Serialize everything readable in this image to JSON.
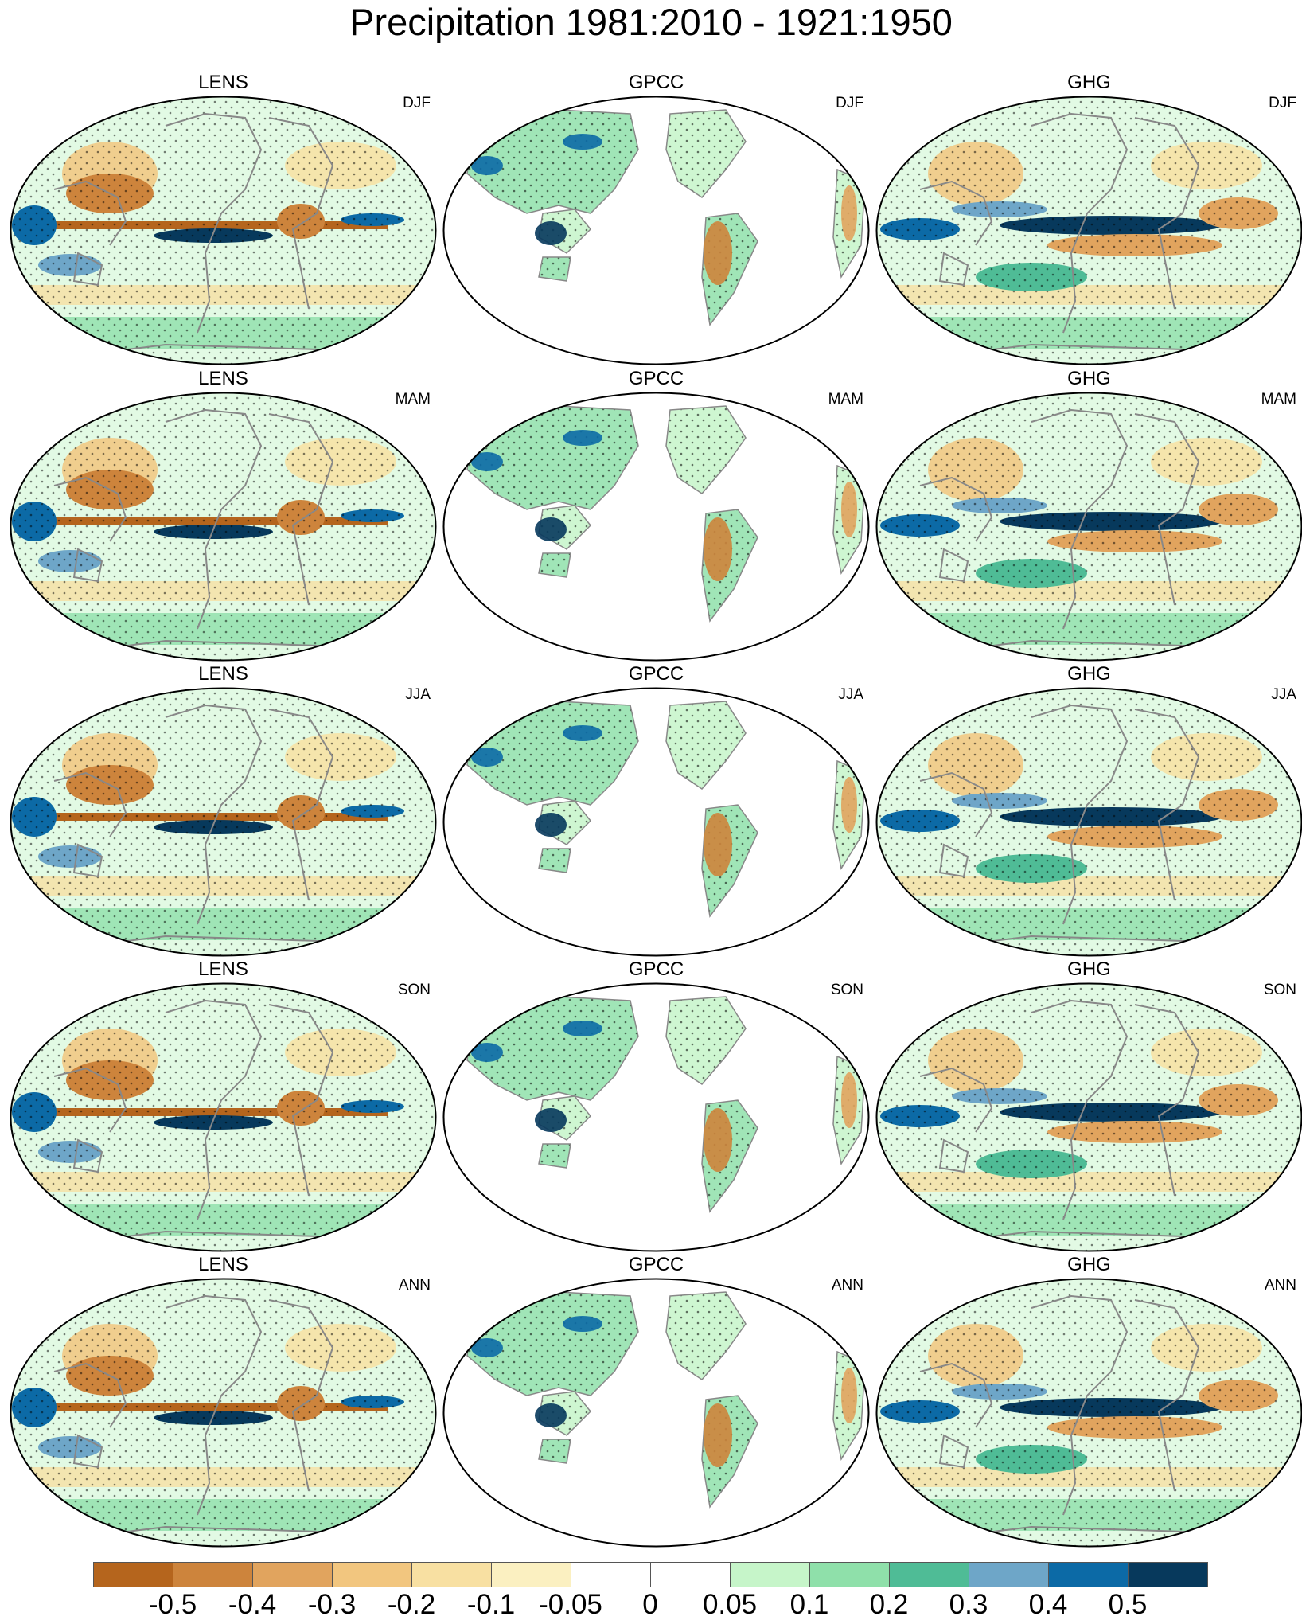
{
  "title": "Precipitation 1981:2010 - 1921:1950",
  "datasets": [
    "LENS",
    "GPCC",
    "GHG"
  ],
  "seasons": [
    "DJF",
    "MAM",
    "JJA",
    "SON",
    "ANN"
  ],
  "colors": {
    "map_outline": "#000000",
    "coastline": "#888888",
    "stipple": "#000000"
  },
  "colorbar": {
    "colors": [
      "#b5651d",
      "#cd843c",
      "#e1a45e",
      "#f2c67f",
      "#f8e0a2",
      "#fbf0c1",
      "#ffffff",
      "#ffffff",
      "#c6f5c9",
      "#8fe0aa",
      "#4fbc96",
      "#6ea6c8",
      "#0c6aa6",
      "#07395c"
    ],
    "tick_labels": [
      "-0.5",
      "-0.4",
      "-0.3",
      "-0.2",
      "-0.1",
      "-0.05",
      "0",
      "0.05",
      "0.1",
      "0.2",
      "0.3",
      "0.4",
      "0.5"
    ]
  }
}
